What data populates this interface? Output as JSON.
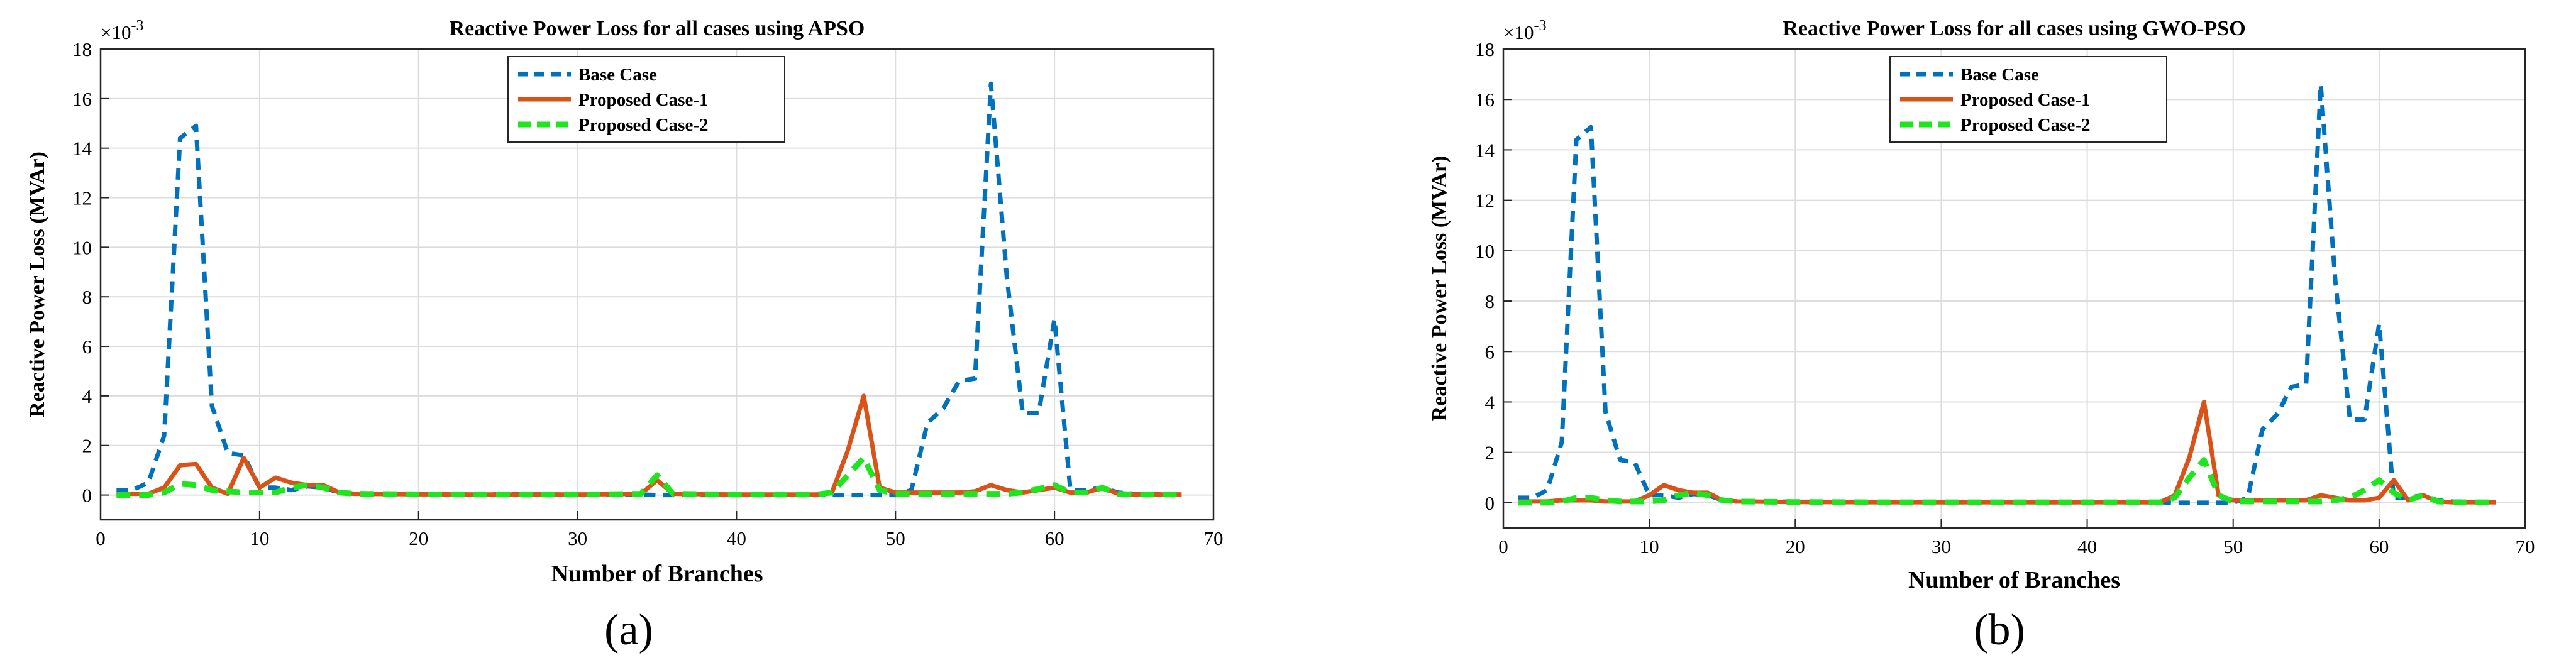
{
  "colors": {
    "base": "#0072BD",
    "case1": "#D95319",
    "case2": "#1EE61E",
    "grid": "#DCDCDC",
    "axis": "#262626"
  },
  "chart_data": [
    {
      "type": "line",
      "title": "Reactive Power Loss for all cases using APSO",
      "caption": "(a)",
      "xlabel": "Number of Branches",
      "ylabel": "Reactive Power Loss (MVAr)",
      "exponent": "×10",
      "exponent_power": "-3",
      "xlim": [
        0,
        70
      ],
      "ylim": [
        -1,
        18
      ],
      "xticks": [
        0,
        10,
        20,
        30,
        40,
        50,
        60,
        70
      ],
      "yticks": [
        0,
        2,
        4,
        6,
        8,
        10,
        12,
        14,
        16,
        18
      ],
      "grid": true,
      "legend_position": "top-center",
      "series": [
        {
          "name": "Base Case",
          "style": "dashed",
          "color": "#0072BD",
          "points": [
            [
              1,
              0.2
            ],
            [
              2,
              0.2
            ],
            [
              3,
              0.5
            ],
            [
              4,
              2.4
            ],
            [
              5,
              14.4
            ],
            [
              6,
              14.9
            ],
            [
              7,
              3.6
            ],
            [
              8,
              1.7
            ],
            [
              9,
              1.6
            ],
            [
              10,
              0.3
            ],
            [
              11,
              0.3
            ],
            [
              12,
              0.2
            ],
            [
              13,
              0.35
            ],
            [
              14,
              0.3
            ],
            [
              15,
              0.1
            ],
            [
              16,
              0.05
            ],
            [
              17,
              0.05
            ],
            [
              18,
              0.05
            ],
            [
              20,
              0.04
            ],
            [
              25,
              0.03
            ],
            [
              30,
              0.02
            ],
            [
              33,
              0.02
            ],
            [
              34,
              0.02
            ],
            [
              35,
              0.0
            ],
            [
              36,
              0.0
            ],
            [
              40,
              0.0
            ],
            [
              45,
              0.0
            ],
            [
              46,
              0.0
            ],
            [
              47,
              0.0
            ],
            [
              48,
              0.0
            ],
            [
              49,
              0.0
            ],
            [
              50,
              0.0
            ],
            [
              51,
              0.2
            ],
            [
              52,
              2.9
            ],
            [
              53,
              3.5
            ],
            [
              54,
              4.6
            ],
            [
              55,
              4.7
            ],
            [
              56,
              16.6
            ],
            [
              57,
              8.8
            ],
            [
              58,
              3.3
            ],
            [
              59,
              3.3
            ],
            [
              60,
              7.1
            ],
            [
              61,
              0.2
            ],
            [
              62,
              0.2
            ],
            [
              63,
              0.3
            ],
            [
              64,
              0.1
            ],
            [
              65,
              0.05
            ],
            [
              68,
              0.02
            ]
          ]
        },
        {
          "name": "Proposed Case-1",
          "style": "solid",
          "color": "#D95319",
          "points": [
            [
              1,
              0.05
            ],
            [
              2,
              0.05
            ],
            [
              3,
              0.05
            ],
            [
              4,
              0.3
            ],
            [
              5,
              1.2
            ],
            [
              6,
              1.25
            ],
            [
              7,
              0.3
            ],
            [
              8,
              0.05
            ],
            [
              9,
              1.5
            ],
            [
              10,
              0.3
            ],
            [
              11,
              0.7
            ],
            [
              12,
              0.5
            ],
            [
              13,
              0.4
            ],
            [
              14,
              0.4
            ],
            [
              15,
              0.1
            ],
            [
              16,
              0.05
            ],
            [
              20,
              0.03
            ],
            [
              25,
              0.02
            ],
            [
              30,
              0.02
            ],
            [
              34,
              0.05
            ],
            [
              35,
              0.6
            ],
            [
              36,
              0.05
            ],
            [
              40,
              0.02
            ],
            [
              45,
              0.02
            ],
            [
              46,
              0.1
            ],
            [
              47,
              1.8
            ],
            [
              48,
              4.0
            ],
            [
              49,
              0.3
            ],
            [
              50,
              0.1
            ],
            [
              51,
              0.1
            ],
            [
              52,
              0.1
            ],
            [
              53,
              0.1
            ],
            [
              54,
              0.1
            ],
            [
              55,
              0.15
            ],
            [
              56,
              0.4
            ],
            [
              57,
              0.2
            ],
            [
              58,
              0.1
            ],
            [
              59,
              0.2
            ],
            [
              60,
              0.3
            ],
            [
              61,
              0.1
            ],
            [
              62,
              0.1
            ],
            [
              63,
              0.3
            ],
            [
              64,
              0.05
            ],
            [
              65,
              0.02
            ],
            [
              68,
              0.02
            ]
          ]
        },
        {
          "name": "Proposed Case-2",
          "style": "dashed",
          "color": "#1EE61E",
          "points": [
            [
              1,
              0.0
            ],
            [
              2,
              0.0
            ],
            [
              3,
              0.0
            ],
            [
              4,
              0.1
            ],
            [
              5,
              0.45
            ],
            [
              6,
              0.4
            ],
            [
              7,
              0.2
            ],
            [
              8,
              0.15
            ],
            [
              9,
              0.1
            ],
            [
              10,
              0.1
            ],
            [
              11,
              0.1
            ],
            [
              12,
              0.3
            ],
            [
              13,
              0.4
            ],
            [
              14,
              0.3
            ],
            [
              15,
              0.1
            ],
            [
              16,
              0.05
            ],
            [
              20,
              0.03
            ],
            [
              25,
              0.02
            ],
            [
              30,
              0.02
            ],
            [
              34,
              0.05
            ],
            [
              35,
              0.8
            ],
            [
              36,
              0.05
            ],
            [
              40,
              0.02
            ],
            [
              45,
              0.02
            ],
            [
              46,
              0.1
            ],
            [
              47,
              0.8
            ],
            [
              48,
              1.5
            ],
            [
              49,
              0.2
            ],
            [
              50,
              0.05
            ],
            [
              51,
              0.05
            ],
            [
              55,
              0.05
            ],
            [
              56,
              0.05
            ],
            [
              57,
              0.05
            ],
            [
              58,
              0.1
            ],
            [
              59,
              0.25
            ],
            [
              60,
              0.4
            ],
            [
              61,
              0.1
            ],
            [
              62,
              0.1
            ],
            [
              63,
              0.3
            ],
            [
              64,
              0.05
            ],
            [
              65,
              0.02
            ],
            [
              68,
              0.02
            ]
          ]
        }
      ]
    },
    {
      "type": "line",
      "title": "Reactive Power Loss for all cases using GWO-PSO",
      "caption": "(b)",
      "xlabel": "Number of Branches",
      "ylabel": "Reactive Power Loss (MVAr)",
      "exponent": "×10",
      "exponent_power": "-3",
      "xlim": [
        0,
        70
      ],
      "ylim": [
        -1,
        18
      ],
      "xticks": [
        0,
        10,
        20,
        30,
        40,
        50,
        60,
        70
      ],
      "yticks": [
        0,
        2,
        4,
        6,
        8,
        10,
        12,
        14,
        16,
        18
      ],
      "grid": true,
      "legend_position": "top-left",
      "series": [
        {
          "name": "Base Case",
          "style": "dashed",
          "color": "#0072BD",
          "points": [
            [
              1,
              0.2
            ],
            [
              2,
              0.2
            ],
            [
              3,
              0.5
            ],
            [
              4,
              2.4
            ],
            [
              5,
              14.4
            ],
            [
              6,
              14.9
            ],
            [
              7,
              3.6
            ],
            [
              8,
              1.7
            ],
            [
              9,
              1.6
            ],
            [
              10,
              0.3
            ],
            [
              11,
              0.3
            ],
            [
              12,
              0.2
            ],
            [
              13,
              0.35
            ],
            [
              14,
              0.3
            ],
            [
              15,
              0.1
            ],
            [
              16,
              0.05
            ],
            [
              17,
              0.05
            ],
            [
              20,
              0.04
            ],
            [
              25,
              0.03
            ],
            [
              30,
              0.02
            ],
            [
              35,
              0.02
            ],
            [
              40,
              0.02
            ],
            [
              45,
              0.02
            ],
            [
              46,
              0.0
            ],
            [
              47,
              0.0
            ],
            [
              48,
              0.0
            ],
            [
              49,
              0.0
            ],
            [
              50,
              0.0
            ],
            [
              51,
              0.2
            ],
            [
              52,
              2.9
            ],
            [
              53,
              3.5
            ],
            [
              54,
              4.6
            ],
            [
              55,
              4.7
            ],
            [
              56,
              16.6
            ],
            [
              57,
              8.8
            ],
            [
              58,
              3.3
            ],
            [
              59,
              3.3
            ],
            [
              60,
              7.1
            ],
            [
              61,
              0.2
            ],
            [
              62,
              0.2
            ],
            [
              63,
              0.3
            ],
            [
              64,
              0.1
            ],
            [
              65,
              0.05
            ],
            [
              68,
              0.02
            ]
          ]
        },
        {
          "name": "Proposed Case-1",
          "style": "solid",
          "color": "#D95319",
          "points": [
            [
              1,
              0.05
            ],
            [
              2,
              0.05
            ],
            [
              3,
              0.05
            ],
            [
              4,
              0.1
            ],
            [
              5,
              0.1
            ],
            [
              6,
              0.1
            ],
            [
              7,
              0.05
            ],
            [
              8,
              0.05
            ],
            [
              9,
              0.05
            ],
            [
              10,
              0.3
            ],
            [
              11,
              0.7
            ],
            [
              12,
              0.5
            ],
            [
              13,
              0.4
            ],
            [
              14,
              0.4
            ],
            [
              15,
              0.1
            ],
            [
              16,
              0.05
            ],
            [
              20,
              0.03
            ],
            [
              25,
              0.02
            ],
            [
              30,
              0.02
            ],
            [
              35,
              0.02
            ],
            [
              40,
              0.02
            ],
            [
              45,
              0.02
            ],
            [
              46,
              0.3
            ],
            [
              47,
              1.8
            ],
            [
              48,
              4.0
            ],
            [
              49,
              0.3
            ],
            [
              50,
              0.1
            ],
            [
              51,
              0.1
            ],
            [
              52,
              0.1
            ],
            [
              53,
              0.1
            ],
            [
              54,
              0.1
            ],
            [
              55,
              0.1
            ],
            [
              56,
              0.3
            ],
            [
              57,
              0.2
            ],
            [
              58,
              0.1
            ],
            [
              59,
              0.1
            ],
            [
              60,
              0.2
            ],
            [
              61,
              0.9
            ],
            [
              62,
              0.1
            ],
            [
              63,
              0.3
            ],
            [
              64,
              0.05
            ],
            [
              65,
              0.02
            ],
            [
              68,
              0.02
            ]
          ]
        },
        {
          "name": "Proposed Case-2",
          "style": "dashed",
          "color": "#1EE61E",
          "points": [
            [
              1,
              0.0
            ],
            [
              2,
              0.0
            ],
            [
              3,
              0.0
            ],
            [
              4,
              0.05
            ],
            [
              5,
              0.2
            ],
            [
              6,
              0.2
            ],
            [
              7,
              0.1
            ],
            [
              8,
              0.05
            ],
            [
              9,
              0.05
            ],
            [
              10,
              0.05
            ],
            [
              11,
              0.1
            ],
            [
              12,
              0.3
            ],
            [
              13,
              0.4
            ],
            [
              14,
              0.3
            ],
            [
              15,
              0.1
            ],
            [
              16,
              0.05
            ],
            [
              20,
              0.03
            ],
            [
              25,
              0.02
            ],
            [
              30,
              0.02
            ],
            [
              35,
              0.02
            ],
            [
              40,
              0.02
            ],
            [
              45,
              0.02
            ],
            [
              46,
              0.2
            ],
            [
              47,
              1.0
            ],
            [
              48,
              1.7
            ],
            [
              49,
              0.3
            ],
            [
              50,
              0.05
            ],
            [
              51,
              0.05
            ],
            [
              55,
              0.05
            ],
            [
              56,
              0.05
            ],
            [
              57,
              0.1
            ],
            [
              58,
              0.2
            ],
            [
              59,
              0.5
            ],
            [
              60,
              0.9
            ],
            [
              61,
              0.4
            ],
            [
              62,
              0.1
            ],
            [
              63,
              0.3
            ],
            [
              64,
              0.05
            ],
            [
              65,
              0.02
            ],
            [
              68,
              0.02
            ]
          ]
        }
      ]
    }
  ]
}
